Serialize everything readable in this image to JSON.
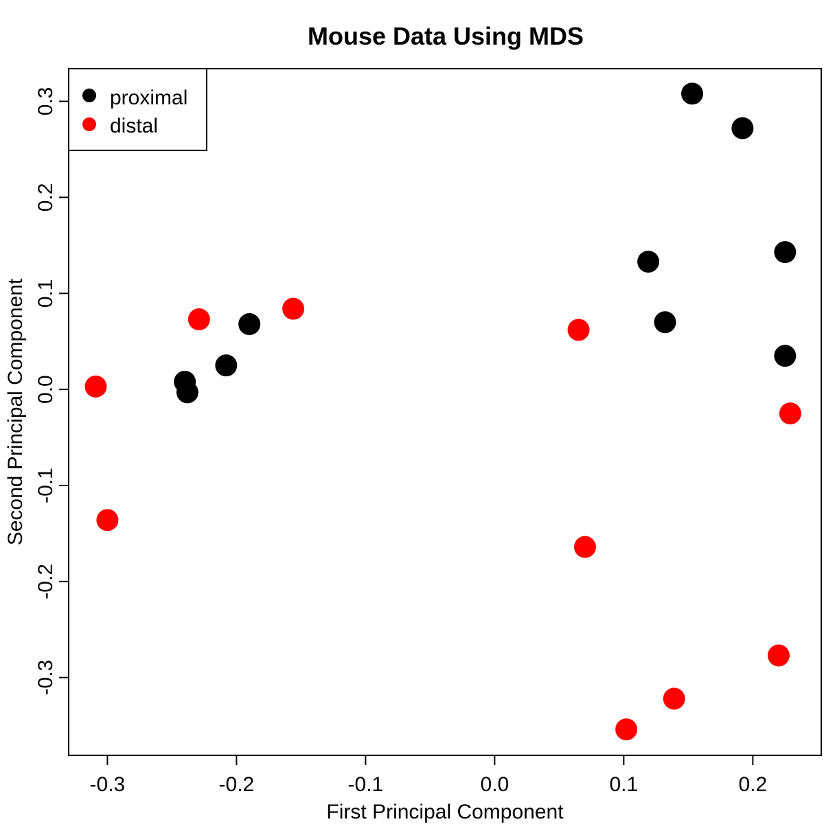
{
  "chart_data": {
    "type": "scatter",
    "title": "Mouse Data Using MDS",
    "xlabel": "First Principal Component",
    "ylabel": "Second Principal Component",
    "xlim": [
      -0.33,
      0.253
    ],
    "ylim": [
      -0.381,
      0.334
    ],
    "xticks": [
      -0.3,
      -0.2,
      -0.1,
      0.0,
      0.1,
      0.2
    ],
    "xtick_labels": [
      "-0.3",
      "-0.2",
      "-0.1",
      "0.0",
      "0.1",
      "0.2"
    ],
    "yticks": [
      -0.3,
      -0.2,
      -0.1,
      0.0,
      0.1,
      0.2,
      0.3
    ],
    "ytick_labels": [
      "-0.3",
      "-0.2",
      "-0.1",
      "0.0",
      "0.1",
      "0.2",
      "0.3"
    ],
    "grid": false,
    "legend_position": "top-left",
    "series": [
      {
        "name": "proximal",
        "color": "#000000",
        "points": [
          {
            "x": 0.153,
            "y": 0.308
          },
          {
            "x": 0.192,
            "y": 0.272
          },
          {
            "x": 0.225,
            "y": 0.143
          },
          {
            "x": 0.119,
            "y": 0.133
          },
          {
            "x": 0.132,
            "y": 0.07
          },
          {
            "x": 0.225,
            "y": 0.035
          },
          {
            "x": -0.19,
            "y": 0.068
          },
          {
            "x": -0.208,
            "y": 0.025
          },
          {
            "x": -0.24,
            "y": 0.008
          },
          {
            "x": -0.238,
            "y": -0.003
          }
        ]
      },
      {
        "name": "distal",
        "color": "#ff0000",
        "points": [
          {
            "x": -0.309,
            "y": 0.003
          },
          {
            "x": -0.3,
            "y": -0.136
          },
          {
            "x": -0.229,
            "y": 0.073
          },
          {
            "x": -0.156,
            "y": 0.084
          },
          {
            "x": 0.065,
            "y": 0.062
          },
          {
            "x": 0.07,
            "y": -0.164
          },
          {
            "x": 0.229,
            "y": -0.025
          },
          {
            "x": 0.22,
            "y": -0.277
          },
          {
            "x": 0.139,
            "y": -0.322
          },
          {
            "x": 0.102,
            "y": -0.354
          }
        ]
      }
    ]
  }
}
